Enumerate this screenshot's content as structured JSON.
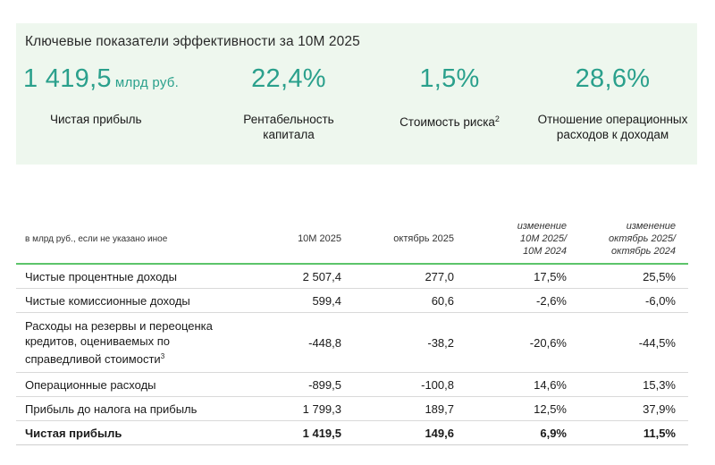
{
  "kpi_panel": {
    "title": "Ключевые показатели эффективности за 10M 2025",
    "items": [
      {
        "value": "1 419,5",
        "unit": "млрд руб.",
        "label": "Чистая прибыль",
        "footnote": ""
      },
      {
        "value": "22,4%",
        "unit": "",
        "label": "Рентабельность капитала",
        "footnote": ""
      },
      {
        "value": "1,5%",
        "unit": "",
        "label": "Стоимость риска",
        "footnote": "2"
      },
      {
        "value": "28,6%",
        "unit": "",
        "label": "Отношение операционных расходов к доходам",
        "footnote": ""
      }
    ],
    "accent_color": "#2aa08c",
    "background_color": "#eef7ee"
  },
  "table": {
    "header": {
      "name": "в млрд руб., если не указано иное",
      "col1": "10M 2025",
      "col2": "октябрь 2025",
      "col3": [
        "изменение",
        "10M 2025/",
        "10M 2024"
      ],
      "col4": [
        "изменение",
        "октябрь 2025/",
        "октябрь 2024"
      ]
    },
    "rows": [
      {
        "name": "Чистые процентные доходы",
        "footnote": "",
        "v1": "2 507,4",
        "v2": "277,0",
        "v3": "17,5%",
        "v4": "25,5%"
      },
      {
        "name": "Чистые комиссионные доходы",
        "footnote": "",
        "v1": "599,4",
        "v2": "60,6",
        "v3": "-2,6%",
        "v4": "-6,0%"
      },
      {
        "name": "Расходы на резервы и переоценка кредитов, оцениваемых по справедливой стоимости",
        "footnote": "3",
        "v1": "-448,8",
        "v2": "-38,2",
        "v3": "-20,6%",
        "v4": "-44,5%"
      },
      {
        "name": "Операционные расходы",
        "footnote": "",
        "v1": "-899,5",
        "v2": "-100,8",
        "v3": "14,6%",
        "v4": "15,3%"
      },
      {
        "name": "Прибыль до налога на прибыль",
        "footnote": "",
        "v1": "1 799,3",
        "v2": "189,7",
        "v3": "12,5%",
        "v4": "37,9%"
      },
      {
        "name": "Чистая прибыль",
        "footnote": "",
        "v1": "1 419,5",
        "v2": "149,6",
        "v3": "6,9%",
        "v4": "11,5%"
      }
    ],
    "header_border_color": "#5cc46a"
  }
}
